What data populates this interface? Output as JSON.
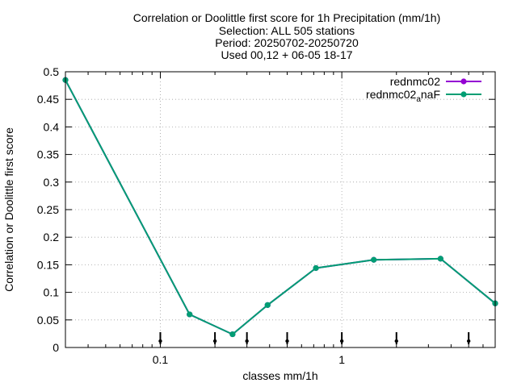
{
  "chart_data": {
    "type": "line",
    "title": [
      "Correlation or Doolittle first score  for 1h Precipitation (mm/1h)",
      "Selection: ALL    505 stations",
      "Period: 20250702-20250720",
      "Used 00,12 + 06-05 18-17"
    ],
    "xlabel": "classes mm/1h",
    "ylabel": "Correlation or Doolittle first score",
    "xscale": "log",
    "xlim": [
      0.03,
      7.0
    ],
    "ylim": [
      0,
      0.5
    ],
    "x_ticks": [
      {
        "value": 0.1,
        "label": "0.1"
      },
      {
        "value": 1,
        "label": "1"
      }
    ],
    "y_ticks": [
      {
        "value": 0,
        "label": "0"
      },
      {
        "value": 0.05,
        "label": "0.05"
      },
      {
        "value": 0.1,
        "label": "0.1"
      },
      {
        "value": 0.15,
        "label": "0.15"
      },
      {
        "value": 0.2,
        "label": "0.2"
      },
      {
        "value": 0.25,
        "label": "0.25"
      },
      {
        "value": 0.3,
        "label": "0.3"
      },
      {
        "value": 0.35,
        "label": "0.35"
      },
      {
        "value": 0.4,
        "label": "0.4"
      },
      {
        "value": 0.45,
        "label": "0.45"
      },
      {
        "value": 0.5,
        "label": "0.5"
      }
    ],
    "grid": true,
    "legend_position": "top-right",
    "class_markers_x": [
      0.1,
      0.2,
      0.3,
      0.5,
      1,
      2,
      5
    ],
    "series": [
      {
        "name": "rednmc02",
        "color": "#9400d3",
        "x": [
          0.03,
          0.145,
          0.25,
          0.39,
          0.72,
          1.5,
          3.5,
          7.0
        ],
        "y": [
          0.485,
          0.06,
          0.024,
          0.077,
          0.144,
          0.159,
          0.161,
          0.08
        ]
      },
      {
        "name_main": "rednmc02",
        "name_sub": "a",
        "name_tail": "naF",
        "color": "#009e73",
        "x": [
          0.03,
          0.145,
          0.25,
          0.39,
          0.72,
          1.5,
          3.5,
          7.0
        ],
        "y": [
          0.485,
          0.06,
          0.024,
          0.077,
          0.144,
          0.159,
          0.161,
          0.08
        ]
      }
    ]
  }
}
